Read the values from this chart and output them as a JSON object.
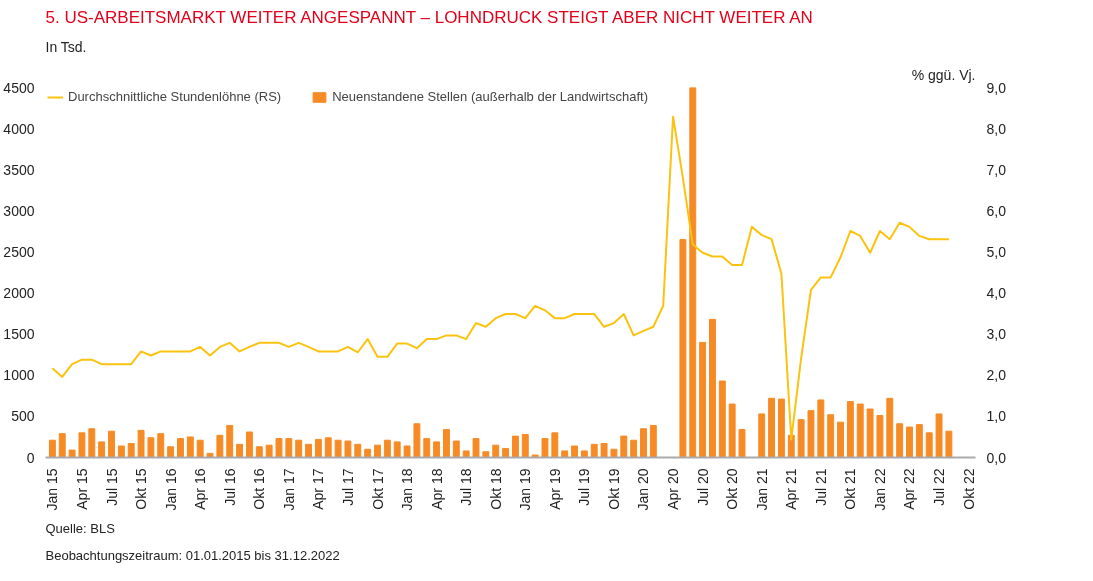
{
  "chart_data": {
    "type": "bar",
    "title": "5.   US-ARBEITSMARKT WEITER ANGESPANNT – LOHNDRUCK STEIGT ABER NICHT WEITER AN",
    "ylabel": "In Tsd.",
    "y2label": "% ggü. Vj.",
    "categories": [
      "Jan 15",
      null,
      null,
      "Apr 15",
      null,
      null,
      "Jul 15",
      null,
      null,
      "Okt 15",
      null,
      null,
      "Jan 16",
      null,
      null,
      "Apr 16",
      null,
      null,
      "Jul 16",
      null,
      null,
      "Okt 16",
      null,
      null,
      "Jan 17",
      null,
      null,
      "Apr 17",
      null,
      null,
      "Jul 17",
      null,
      null,
      "Okt 17",
      null,
      null,
      "Jan 18",
      null,
      null,
      "Apr 18",
      null,
      null,
      "Jul 18",
      null,
      null,
      "Okt 18",
      null,
      null,
      "Jan 19",
      null,
      null,
      "Apr 19",
      null,
      null,
      "Jul 19",
      null,
      null,
      "Okt 19",
      null,
      null,
      "Jan 20",
      null,
      null,
      "Apr 20",
      null,
      null,
      "Jul 20",
      null,
      null,
      "Okt 20",
      null,
      null,
      "Jan 21",
      null,
      null,
      "Apr 21",
      null,
      null,
      "Jul 21",
      null,
      null,
      "Okt 21",
      null,
      null,
      "Jan 22",
      null,
      null,
      "Apr 22",
      null,
      null,
      "Jul 22",
      null,
      null,
      "Okt 22"
    ],
    "series": [
      {
        "name": "Durchschnittliche Stundenlöhne (RS)",
        "type": "line",
        "axis": "y2",
        "color": "#fbc30f",
        "values": [
          2.17,
          1.96,
          2.27,
          2.38,
          2.38,
          2.27,
          2.27,
          2.27,
          2.27,
          2.58,
          2.48,
          2.58,
          2.58,
          2.58,
          2.58,
          2.69,
          2.48,
          2.69,
          2.79,
          2.58,
          2.69,
          2.79,
          2.79,
          2.79,
          2.69,
          2.79,
          2.69,
          2.58,
          2.58,
          2.58,
          2.69,
          2.56,
          2.88,
          2.45,
          2.45,
          2.77,
          2.77,
          2.66,
          2.88,
          2.88,
          2.97,
          2.97,
          2.88,
          3.27,
          3.18,
          3.39,
          3.49,
          3.49,
          3.39,
          3.69,
          3.58,
          3.39,
          3.39,
          3.49,
          3.49,
          3.49,
          3.18,
          3.27,
          3.49,
          2.97,
          3.08,
          3.18,
          3.69,
          8.29,
          6.8,
          5.18,
          4.98,
          4.89,
          4.89,
          4.68,
          4.68,
          5.61,
          5.41,
          5.31,
          4.47,
          0.44,
          2.41,
          4.08,
          4.38,
          4.38,
          4.87,
          5.51,
          5.39,
          4.98,
          5.51,
          5.31,
          5.71,
          5.61,
          5.39,
          5.31,
          5.31,
          5.31,
          null,
          null
        ]
      },
      {
        "name": "Neuenstandene Stellen (außerhalb der Landwirtschaft)",
        "color": "#f68b26",
        "values": [
          210,
          290,
          90,
          300,
          350,
          190,
          320,
          140,
          170,
          330,
          240,
          290,
          130,
          230,
          250,
          210,
          50,
          270,
          390,
          160,
          310,
          130,
          150,
          230,
          230,
          210,
          160,
          220,
          240,
          210,
          200,
          160,
          100,
          150,
          210,
          190,
          140,
          410,
          230,
          190,
          340,
          200,
          80,
          230,
          70,
          150,
          110,
          260,
          280,
          30,
          230,
          300,
          80,
          140,
          80,
          160,
          170,
          100,
          260,
          210,
          350,
          390,
          null,
          null,
          2650,
          4500,
          1400,
          1680,
          930,
          650,
          340,
          null,
          530,
          720,
          710,
          270,
          460,
          570,
          700,
          520,
          430,
          680,
          650,
          590,
          510,
          720,
          410,
          370,
          400,
          300,
          530,
          320,
          null,
          null
        ]
      }
    ],
    "ylim": [
      0,
      4500
    ],
    "yticks": [
      0,
      500,
      1000,
      1500,
      2000,
      2500,
      3000,
      3500,
      4000,
      4500
    ],
    "y2lim": [
      0,
      9
    ],
    "y2ticks": [
      {
        "value": 0,
        "label": "0,0"
      },
      {
        "value": 1,
        "label": "1,0"
      },
      {
        "value": 2,
        "label": "2,0"
      },
      {
        "value": 3,
        "label": "3,0"
      },
      {
        "value": 4,
        "label": "4,0"
      },
      {
        "value": 5,
        "label": "5,0"
      },
      {
        "value": 6,
        "label": "6,0"
      },
      {
        "value": 7,
        "label": "7,0"
      },
      {
        "value": 8,
        "label": "8,0"
      },
      {
        "value": 9,
        "label": "9,0"
      }
    ],
    "legend": "top",
    "annotations": [
      "Quelle: BLS",
      "Beobachtungszeitraum: 01.01.2015 bis 31.12.2022"
    ]
  }
}
